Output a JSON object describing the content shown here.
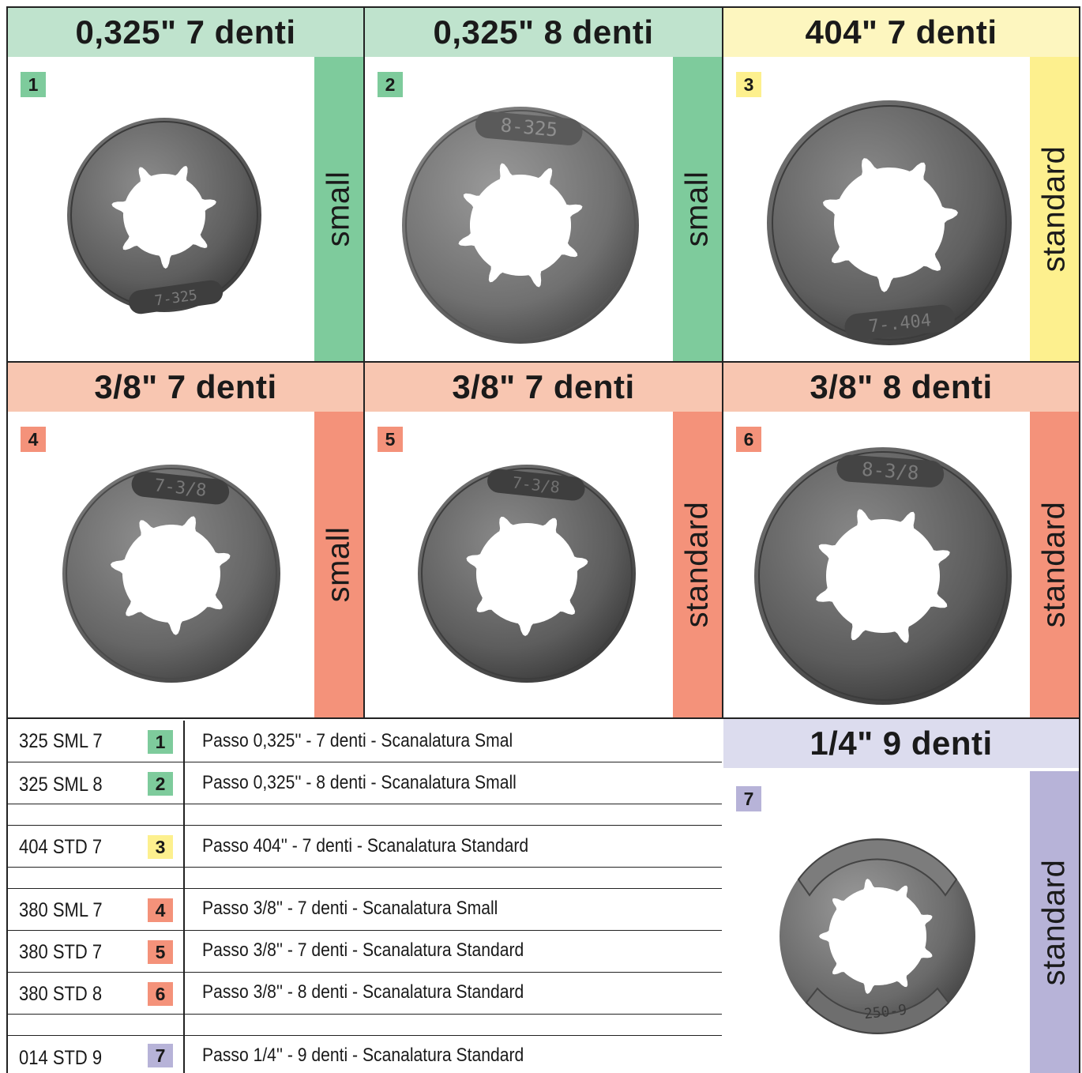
{
  "panels": [
    {
      "title": "0,325\" 7 denti",
      "num": "1",
      "groove": "small",
      "marking": "7-325"
    },
    {
      "title": "0,325\" 8 denti",
      "num": "2",
      "groove": "small",
      "marking": "8-325"
    },
    {
      "title": "404\" 7 denti",
      "num": "3",
      "groove": "standard",
      "marking": "7-.404"
    },
    {
      "title": "3/8\" 7 denti",
      "num": "4",
      "groove": "small",
      "marking": "7-3/8"
    },
    {
      "title": "3/8\" 7 denti",
      "num": "5",
      "groove": "standard",
      "marking": "7-3/8"
    },
    {
      "title": "3/8\" 8 denti",
      "num": "6",
      "groove": "standard",
      "marking": "8-3/8"
    },
    {
      "title": "1/4\" 9 denti",
      "num": "7",
      "groove": "standard",
      "marking": "250-9"
    }
  ],
  "table": [
    {
      "code": "325 SML 7",
      "num": "1",
      "desc": "Passo 0,325'' - 7 denti - Scanalatura Smal"
    },
    {
      "code": "325 SML 8",
      "num": "2",
      "desc": "Passo 0,325'' - 8 denti - Scanalatura Small"
    },
    {
      "code": "404 STD 7",
      "num": "3",
      "desc": "Passo 404'' - 7 denti - Scanalatura Standard"
    },
    {
      "code": "380 SML 7",
      "num": "4",
      "desc": "Passo  3/8'' - 7 denti - Scanalatura Small"
    },
    {
      "code": "380 STD 7",
      "num": "5",
      "desc": "Passo  3/8'' - 7 denti - Scanalatura Standard"
    },
    {
      "code": "380 STD 8",
      "num": "6",
      "desc": "Passo  3/8'' - 8 denti - Scanalatura Standard"
    },
    {
      "code": "014 STD 9",
      "num": "7",
      "desc": "Passo  1/4'' - 9 denti - Scanalatura Standard"
    }
  ],
  "colors": {
    "green_header": "#bfe3cd",
    "green": "#7ecb9c",
    "yellow_header": "#fdf6bf",
    "yellow": "#fdf08e",
    "salmon_header": "#f8c6b1",
    "salmon": "#f4927a",
    "lavender_header": "#dcdcee",
    "lavender": "#b7b3d8"
  }
}
